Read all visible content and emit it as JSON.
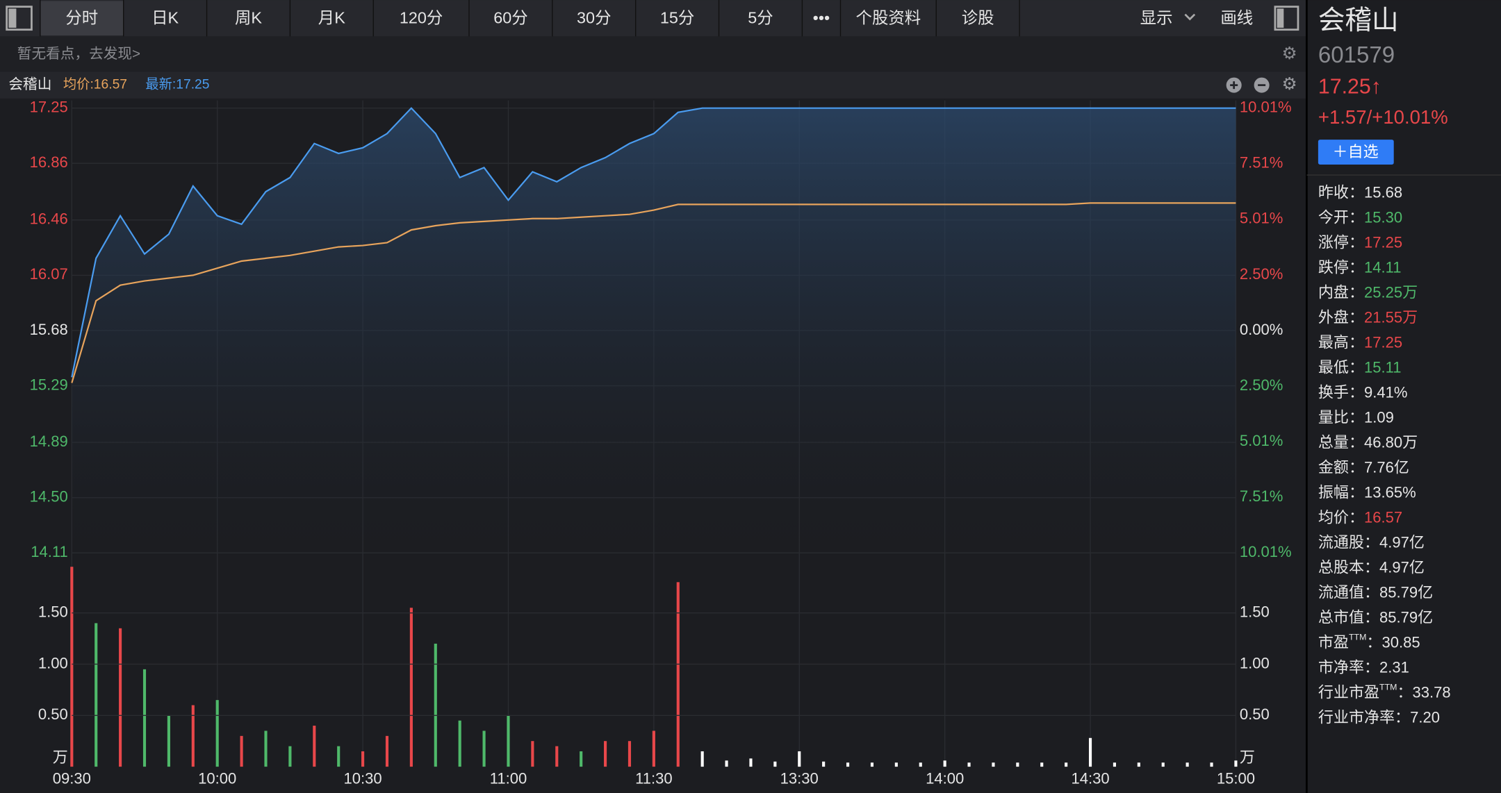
{
  "toolbar": {
    "tabs": [
      "分时",
      "日K",
      "周K",
      "月K",
      "120分",
      "60分",
      "30分",
      "15分",
      "5分",
      "•••",
      "个股资料",
      "诊股"
    ],
    "active": 0,
    "display": "显示",
    "draw": "画线"
  },
  "notice": "暂无看点，去发现>",
  "chart_header": {
    "name": "会稽山",
    "avg_label": "均价:16.57",
    "last_label": "最新:17.25"
  },
  "chart_data": [
    {
      "type": "line",
      "categories": [
        "09:30",
        null,
        null,
        null,
        null,
        null,
        "10:00",
        null,
        null,
        null,
        null,
        null,
        "10:30",
        null,
        null,
        null,
        null,
        null,
        "11:00",
        null,
        null,
        null,
        null,
        null,
        "11:30",
        null,
        null,
        null,
        null,
        null,
        "13:30",
        null,
        null,
        null,
        null,
        null,
        "14:00",
        null,
        null,
        null,
        null,
        null,
        "14:30",
        null,
        null,
        null,
        null,
        null,
        "15:00"
      ],
      "series": [
        {
          "color": "#4a9cf0",
          "values": [
            15.35,
            16.19,
            16.49,
            16.22,
            16.36,
            16.7,
            16.49,
            16.43,
            16.66,
            16.76,
            17.0,
            16.93,
            16.97,
            17.07,
            17.25,
            17.07,
            16.76,
            16.83,
            16.6,
            16.8,
            16.73,
            16.83,
            16.9,
            17.0,
            17.07,
            17.22,
            17.25,
            17.25,
            17.25,
            17.25,
            17.25,
            17.25,
            17.25,
            17.25,
            17.25,
            17.25,
            17.25,
            17.25,
            17.25,
            17.25,
            17.25,
            17.25,
            17.25,
            17.25,
            17.25,
            17.25,
            17.25,
            17.25,
            17.25
          ]
        },
        {
          "color": "#e8a45c",
          "values": [
            15.31,
            15.89,
            16.0,
            16.03,
            16.05,
            16.07,
            16.12,
            16.17,
            16.19,
            16.21,
            16.24,
            16.27,
            16.28,
            16.3,
            16.39,
            16.42,
            16.44,
            16.45,
            16.46,
            16.47,
            16.47,
            16.48,
            16.49,
            16.5,
            16.53,
            16.57,
            16.57,
            16.57,
            16.57,
            16.57,
            16.57,
            16.57,
            16.57,
            16.57,
            16.57,
            16.57,
            16.57,
            16.57,
            16.57,
            16.57,
            16.57,
            16.57,
            16.58,
            16.58,
            16.58,
            16.58,
            16.58,
            16.58,
            16.58
          ]
        }
      ],
      "ylim": [
        14.11,
        17.25
      ],
      "yticks": [
        14.11,
        {
          "value": 14.5,
          "label": "14.50"
        },
        14.89,
        15.29,
        15.68,
        16.07,
        16.46,
        16.86,
        17.25
      ],
      "y2lim": [
        -10.01,
        10.01
      ],
      "y2ticks": [
        {
          "value": -10.01,
          "label": "10.01%"
        },
        {
          "value": -7.51,
          "label": "7.51%"
        },
        {
          "value": -5.01,
          "label": "5.01%"
        },
        {
          "value": -2.5,
          "label": "2.50%"
        },
        {
          "value": 0,
          "label": "0.00%"
        },
        {
          "value": 2.5,
          "label": "2.50%"
        },
        {
          "value": 5.01,
          "label": "5.01%"
        },
        {
          "value": 7.51,
          "label": "7.51%"
        },
        {
          "value": 10.01,
          "label": "10.01%"
        }
      ],
      "grid": true
    },
    {
      "type": "bar",
      "categories": [
        "09:30",
        null,
        null,
        null,
        null,
        null,
        "10:00",
        null,
        null,
        null,
        null,
        null,
        "10:30",
        null,
        null,
        null,
        null,
        null,
        "11:00",
        null,
        null,
        null,
        null,
        null,
        "11:30",
        null,
        null,
        null,
        null,
        null,
        "13:30",
        null,
        null,
        null,
        null,
        null,
        "14:00",
        null,
        null,
        null,
        null,
        null,
        "14:30",
        null,
        null,
        null,
        null,
        null,
        "15:00"
      ],
      "values": [
        1.95,
        1.4,
        1.35,
        0.95,
        0.5,
        0.6,
        0.65,
        0.3,
        0.35,
        0.2,
        0.4,
        0.2,
        0.15,
        0.3,
        1.55,
        1.2,
        0.45,
        0.35,
        0.5,
        0.25,
        0.2,
        0.15,
        0.25,
        0.25,
        0.35,
        1.8,
        0.15,
        0.06,
        0.08,
        0.05,
        0.15,
        0.05,
        0.04,
        0.04,
        0.04,
        0.04,
        0.06,
        0.04,
        0.04,
        0.04,
        0.04,
        0.04,
        0.28,
        0.04,
        0.04,
        0.04,
        0.04,
        0.04,
        0.06
      ],
      "colors": [
        "#e8474a",
        "#4fb96a",
        "#e8474a",
        "#4fb96a",
        "#4fb96a",
        "#e8474a",
        "#4fb96a",
        "#e8474a",
        "#4fb96a",
        "#4fb96a",
        "#e8474a",
        "#4fb96a",
        "#e8474a",
        "#e8474a",
        "#e8474a",
        "#4fb96a",
        "#4fb96a",
        "#4fb96a",
        "#4fb96a",
        "#e8474a",
        "#e8474a",
        "#4fb96a",
        "#e8474a",
        "#e8474a",
        "#e8474a",
        "#e8474a",
        "#ffffff",
        "#ffffff",
        "#ffffff",
        "#ffffff",
        "#ffffff",
        "#ffffff",
        "#ffffff",
        "#ffffff",
        "#ffffff",
        "#ffffff",
        "#ffffff",
        "#ffffff",
        "#ffffff",
        "#ffffff",
        "#ffffff",
        "#ffffff",
        "#ffffff",
        "#ffffff",
        "#ffffff",
        "#ffffff",
        "#ffffff",
        "#ffffff",
        "#ffffff"
      ],
      "ylim": [
        0,
        2.02
      ],
      "yticks": [
        {
          "value": 0.5,
          "label": "0.50"
        },
        {
          "value": 1,
          "label": "1.00"
        },
        {
          "value": 1.5,
          "label": "1.50"
        }
      ],
      "unit": "万",
      "grid": true
    }
  ],
  "quote": {
    "name": "会稽山",
    "code": "601579",
    "price": "17.25↑",
    "change": "+1.57/+10.01%",
    "add_button": "＋自选",
    "stats": [
      {
        "label": "昨收：",
        "value": "15.68",
        "color": "#e6e6e6"
      },
      {
        "label": "今开：",
        "value": "15.30",
        "color": "#4fb96a"
      },
      {
        "label": "涨停：",
        "value": "17.25",
        "color": "#e8474a"
      },
      {
        "label": "跌停：",
        "value": "14.11",
        "color": "#4fb96a"
      },
      {
        "label": "内盘：",
        "value": "25.25万",
        "color": "#4fb96a"
      },
      {
        "label": "外盘：",
        "value": "21.55万",
        "color": "#e8474a"
      },
      {
        "label": "最高：",
        "value": "17.25",
        "color": "#e8474a"
      },
      {
        "label": "最低：",
        "value": "15.11",
        "color": "#4fb96a"
      },
      {
        "label": "换手：",
        "value": "9.41%",
        "color": "#e6e6e6"
      },
      {
        "label": "量比：",
        "value": "1.09",
        "color": "#e6e6e6"
      },
      {
        "label": "总量：",
        "value": "46.80万",
        "color": "#e6e6e6"
      },
      {
        "label": "金额：",
        "value": "7.76亿",
        "color": "#e6e6e6"
      },
      {
        "label": "振幅：",
        "value": "13.65%",
        "color": "#e6e6e6"
      },
      {
        "label": "均价：",
        "value": "16.57",
        "color": "#e8474a"
      },
      {
        "label": "流通股：",
        "value": "4.97亿",
        "color": "#e6e6e6"
      },
      {
        "label": "总股本：",
        "value": "4.97亿",
        "color": "#e6e6e6"
      },
      {
        "label": "流通值：",
        "value": "85.79亿",
        "color": "#e6e6e6"
      },
      {
        "label": "总市值：",
        "value": "85.79亿",
        "color": "#e6e6e6"
      },
      {
        "label": "市盈",
        "sup": "TTM",
        "sep": "：",
        "value": "30.85",
        "color": "#e6e6e6"
      },
      {
        "label": "市净率：",
        "value": "2.31",
        "color": "#e6e6e6"
      },
      {
        "label": "行业市盈",
        "sup": "TTM",
        "sep": "：",
        "value": "33.78",
        "color": "#e6e6e6"
      },
      {
        "label": "行业市净率：",
        "value": "7.20",
        "color": "#e6e6e6"
      }
    ]
  }
}
